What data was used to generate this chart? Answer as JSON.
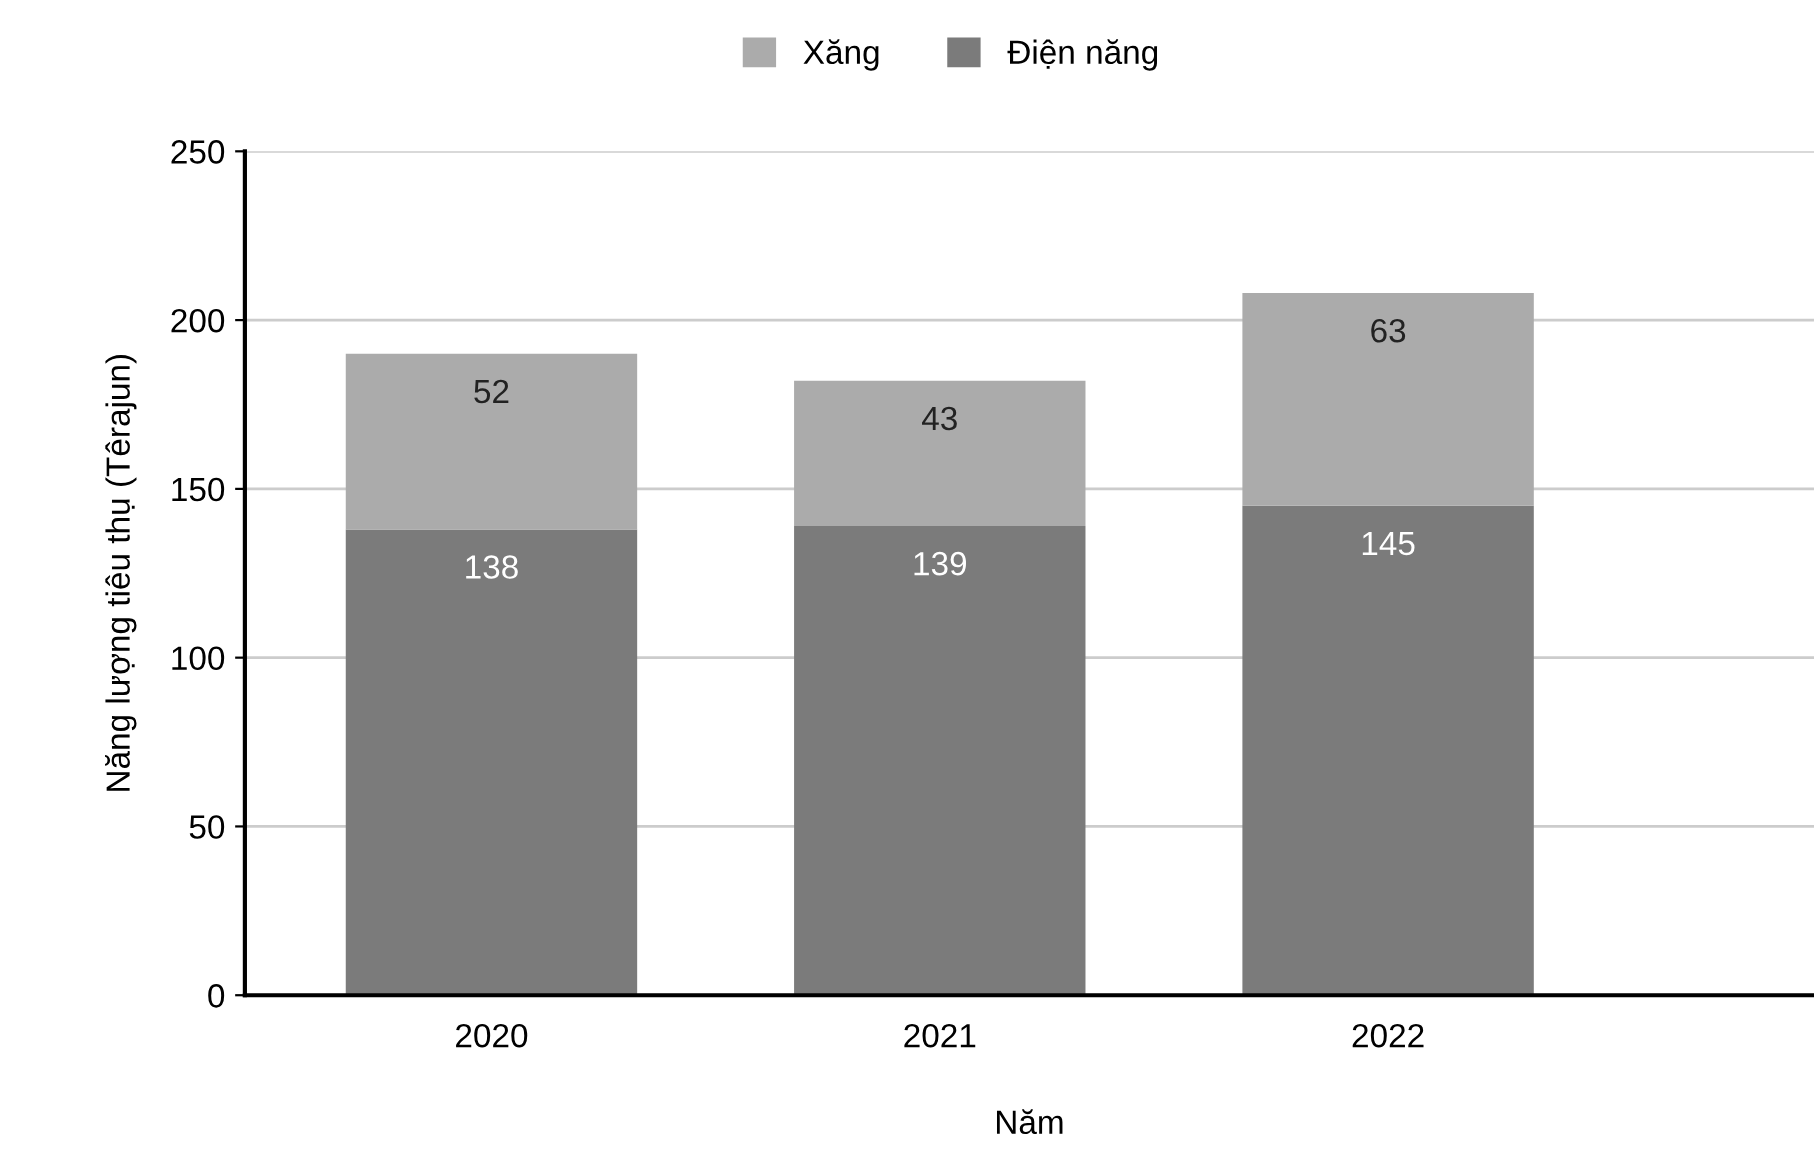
{
  "chart_data": {
    "type": "bar",
    "stacked": true,
    "xlabel": "Năm",
    "ylabel": "Năng lượng tiêu thụ (Têrajun)",
    "categories": [
      "2020",
      "2021",
      "2022"
    ],
    "series": [
      {
        "name": "Điện năng",
        "color": "#7b7b7b",
        "values": [
          138,
          139,
          145
        ]
      },
      {
        "name": "Xăng",
        "color": "#ababab",
        "values": [
          52,
          43,
          63
        ]
      }
    ],
    "ylim": [
      0,
      250
    ],
    "yticks": [
      0,
      50,
      100,
      150,
      200,
      250
    ],
    "grid": "y",
    "legend": "top",
    "data_labels": true
  }
}
